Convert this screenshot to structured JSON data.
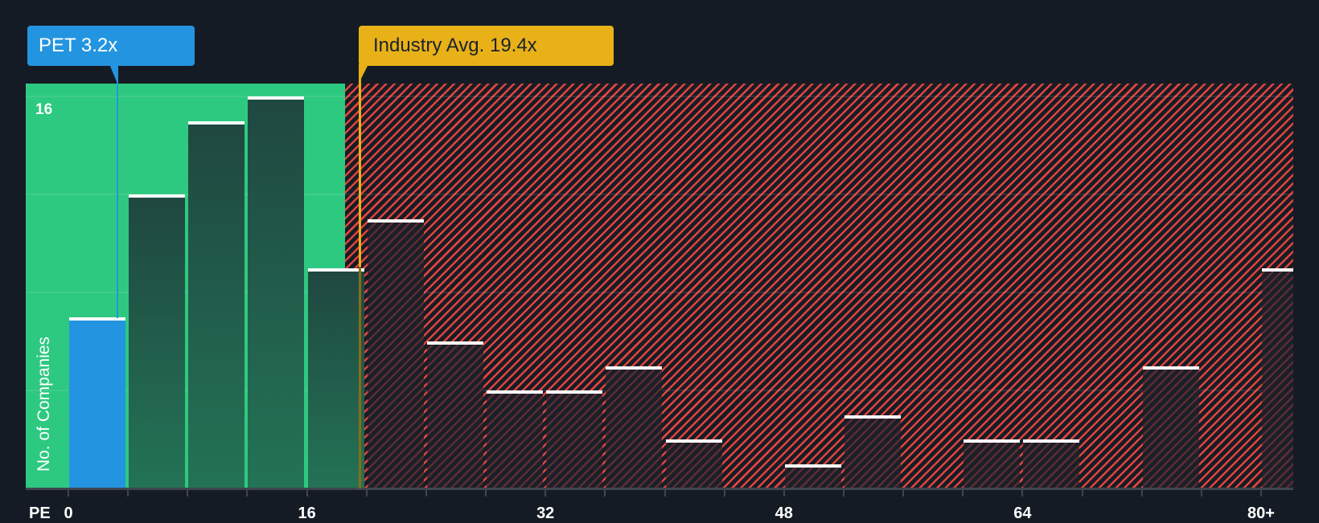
{
  "chart_data": {
    "type": "bar",
    "title": "",
    "xlabel": "PE",
    "ylabel": "No. of Companies",
    "x_tick_labels": [
      "0",
      "16",
      "32",
      "48",
      "64",
      "80+"
    ],
    "y_tick_labels": [
      "16"
    ],
    "ylim": [
      0,
      16.5
    ],
    "grid": true,
    "bin_width": 4,
    "categories": [
      "0-4",
      "4-8",
      "8-12",
      "12-16",
      "16-20",
      "20-24",
      "24-28",
      "28-32",
      "32-36",
      "36-40",
      "40-44",
      "44-48",
      "48-52",
      "52-56",
      "56-60",
      "60-64",
      "64-68",
      "68-72",
      "72-76",
      "76-80",
      "80+"
    ],
    "values": [
      7,
      12,
      15,
      16,
      9,
      11,
      6,
      4,
      4,
      5,
      2,
      0,
      1,
      3,
      0,
      2,
      2,
      0,
      5,
      0,
      9
    ],
    "company_bin_index": 0,
    "annotations": [
      {
        "label": "PET 3.2x",
        "x": 3.2,
        "color": "#2394e0"
      },
      {
        "label": "Industry Avg. 19.4x",
        "x": 19.4,
        "color": "#e9b118"
      }
    ],
    "regions": [
      {
        "name": "below-average",
        "from": 0,
        "to": 19.4,
        "color": "#2ec981"
      },
      {
        "name": "above-average",
        "from": 19.4,
        "to": "80+",
        "color": "#e0443f",
        "pattern": "hatched"
      }
    ]
  },
  "labels": {
    "company": "PET 3.2x",
    "industry": "Industry Avg. 19.4x",
    "y_axis_title": "No. of Companies",
    "y_top_tick": "16",
    "x_axis_name": "PE",
    "x_ticks": [
      "0",
      "16",
      "32",
      "48",
      "64",
      "80+"
    ]
  },
  "colors": {
    "background": "#151b24",
    "green_zone": "#2ec981",
    "red_hatch": "#e0443f",
    "company": "#2394e0",
    "industry": "#e9b118"
  }
}
